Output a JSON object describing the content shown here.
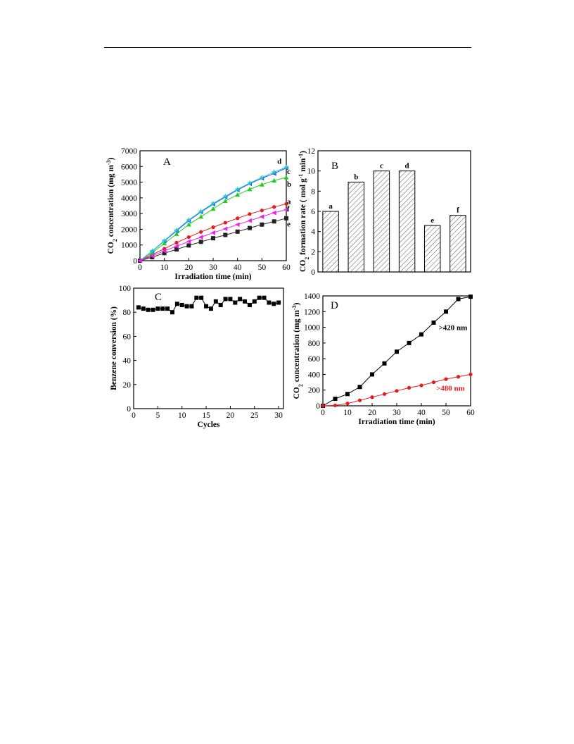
{
  "chart_data": [
    {
      "panel": "A",
      "type": "line",
      "xlabel": "Irradiation time (min)",
      "ylabel": "CO2 concentration (mg m-3)",
      "xlim": [
        0,
        60
      ],
      "ylim": [
        0,
        7000
      ],
      "xticks": [
        0,
        10,
        20,
        30,
        40,
        50,
        60
      ],
      "yticks": [
        0,
        1000,
        2000,
        3000,
        4000,
        5000,
        6000,
        7000
      ],
      "x": [
        0,
        5,
        10,
        15,
        20,
        25,
        30,
        35,
        40,
        45,
        50,
        55,
        60
      ],
      "series": [
        {
          "name": "a",
          "color": "#e41a1c",
          "marker": "circle",
          "values": [
            0,
            380,
            760,
            1150,
            1500,
            1830,
            2130,
            2420,
            2700,
            2970,
            3200,
            3420,
            3620
          ]
        },
        {
          "name": "b",
          "color": "#22cc22",
          "marker": "triangle",
          "values": [
            0,
            500,
            1100,
            1700,
            2300,
            2800,
            3300,
            3800,
            4200,
            4550,
            4850,
            5100,
            5300
          ]
        },
        {
          "name": "c",
          "color": "#2255ff",
          "marker": "triangle-left",
          "values": [
            0,
            600,
            1250,
            1900,
            2550,
            3100,
            3600,
            4050,
            4500,
            4900,
            5250,
            5550,
            5900
          ]
        },
        {
          "name": "d",
          "color": "#22cccc",
          "marker": "star",
          "values": [
            0,
            620,
            1280,
            1950,
            2600,
            3150,
            3650,
            4100,
            4550,
            4950,
            5300,
            5650,
            5950
          ]
        },
        {
          "name": "e",
          "color": "#222222",
          "marker": "square",
          "values": [
            0,
            220,
            480,
            720,
            970,
            1200,
            1430,
            1640,
            1850,
            2080,
            2300,
            2500,
            2700
          ]
        },
        {
          "name": "f",
          "color": "#ee22ee",
          "marker": "triangle-left",
          "values": [
            0,
            300,
            620,
            920,
            1220,
            1500,
            1780,
            2030,
            2300,
            2550,
            2800,
            3050,
            3250
          ]
        }
      ],
      "labels": [
        {
          "text": "d",
          "x": 56,
          "y": 6350
        },
        {
          "text": "c",
          "x": 60,
          "y": 5700
        },
        {
          "text": "b",
          "x": 60,
          "y": 4900
        },
        {
          "text": "a",
          "x": 60,
          "y": 3800
        },
        {
          "text": "f",
          "x": 60,
          "y": 3350
        },
        {
          "text": "e",
          "x": 60,
          "y": 2350
        }
      ]
    },
    {
      "panel": "B",
      "type": "bar",
      "ylabel": "CO2 formation rate ( mol g-1 min-1)",
      "ylim": [
        0,
        12
      ],
      "yticks": [
        0,
        2,
        4,
        6,
        8,
        10,
        12
      ],
      "categories": [
        "a",
        "b",
        "c",
        "d",
        "e",
        "f"
      ],
      "values": [
        6.0,
        8.9,
        10.0,
        10.0,
        4.6,
        5.6
      ]
    },
    {
      "panel": "C",
      "type": "line",
      "xlabel": "Cycles",
      "ylabel": "Benzene conversion (%)",
      "xlim": [
        0,
        31
      ],
      "ylim": [
        0,
        100
      ],
      "xticks": [
        0,
        5,
        10,
        15,
        20,
        25,
        30
      ],
      "yticks": [
        0,
        20,
        40,
        60,
        80,
        100
      ],
      "x": [
        1,
        2,
        3,
        4,
        5,
        6,
        7,
        8,
        9,
        10,
        11,
        12,
        13,
        14,
        15,
        16,
        17,
        18,
        19,
        20,
        21,
        22,
        23,
        24,
        25,
        26,
        27,
        28,
        29,
        30
      ],
      "series": [
        {
          "name": "",
          "color": "#000000",
          "marker": "square",
          "values": [
            84,
            83,
            82,
            82,
            83,
            83,
            83,
            80,
            87,
            86,
            85,
            85,
            92,
            92,
            85,
            83,
            89,
            86,
            91,
            91,
            88,
            91,
            89,
            86,
            89,
            92,
            92,
            88,
            87,
            88
          ]
        }
      ]
    },
    {
      "panel": "D",
      "type": "line",
      "xlabel": "Irradiation time (min)",
      "ylabel": "CO2 concentration (mg m-3)",
      "xlim": [
        0,
        60
      ],
      "ylim": [
        0,
        1400
      ],
      "xticks": [
        0,
        10,
        20,
        30,
        40,
        50,
        60
      ],
      "yticks": [
        0,
        200,
        400,
        600,
        800,
        1000,
        1200,
        1400
      ],
      "x": [
        0,
        5,
        10,
        15,
        20,
        25,
        30,
        35,
        40,
        45,
        50,
        55,
        60
      ],
      "series": [
        {
          "name": ">420 nm",
          "color": "#000000",
          "marker": "square",
          "values": [
            0,
            90,
            150,
            240,
            400,
            540,
            690,
            800,
            910,
            1060,
            1200,
            1360,
            1390
          ]
        },
        {
          "name": ">480 nm",
          "color": "#e41a1c",
          "marker": "circle",
          "values": [
            0,
            5,
            30,
            70,
            110,
            150,
            190,
            230,
            260,
            300,
            340,
            370,
            400
          ]
        }
      ]
    }
  ]
}
